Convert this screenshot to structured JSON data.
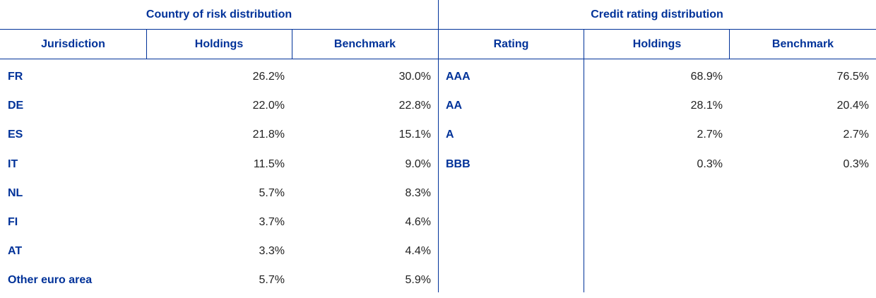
{
  "tables": [
    {
      "title": "Country of risk distribution",
      "headers": [
        "Jurisdiction",
        "Holdings",
        "Benchmark"
      ],
      "rows": [
        [
          "FR",
          "26.2%",
          "30.0%"
        ],
        [
          "DE",
          "22.0%",
          "22.8%"
        ],
        [
          "ES",
          "21.8%",
          "15.1%"
        ],
        [
          "IT",
          "11.5%",
          "9.0%"
        ],
        [
          "NL",
          "5.7%",
          "8.3%"
        ],
        [
          "FI",
          "3.7%",
          "4.6%"
        ],
        [
          "AT",
          "3.3%",
          "4.4%"
        ],
        [
          "Other euro area",
          "5.7%",
          "5.9%"
        ]
      ]
    },
    {
      "title": "Credit rating distribution",
      "headers": [
        "Rating",
        "Holdings",
        "Benchmark"
      ],
      "rows": [
        [
          "AAA",
          "68.9%",
          "76.5%"
        ],
        [
          "AA",
          "28.1%",
          "20.4%"
        ],
        [
          "A",
          "2.7%",
          "2.7%"
        ],
        [
          "BBB",
          "0.3%",
          "0.3%"
        ]
      ]
    }
  ]
}
